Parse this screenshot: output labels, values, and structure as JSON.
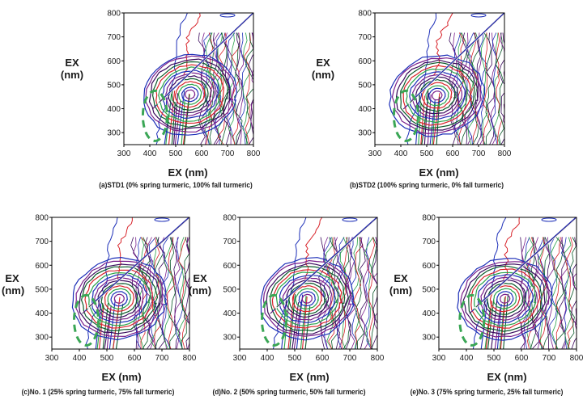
{
  "colors": {
    "contours": [
      "#3a0a5c",
      "#7a1f8c",
      "#1d2fb8",
      "#2aa34a",
      "#d8232a",
      "#0b5a2a"
    ],
    "marker": "#3aa655",
    "frame": "#000000"
  },
  "chart_data": [
    {
      "type": "contour",
      "id": "a",
      "caption": "(a)STD1 (0% spring turmeric, 100% fall turmeric)",
      "xlabel": "EX (nm)",
      "ylabel": [
        "EX",
        "(nm)"
      ],
      "xlim": [
        300,
        800
      ],
      "ylim": [
        250,
        800
      ],
      "xticks": [
        "300",
        "400",
        "500",
        "600",
        "700",
        "800"
      ],
      "yticks": [
        "300",
        "400",
        "500",
        "600",
        "700",
        "800"
      ],
      "peak": {
        "x": 555,
        "y": 460
      },
      "marker": {
        "x": 420,
        "y": 370
      }
    },
    {
      "type": "contour",
      "id": "b",
      "caption": "(b)STD2 (100% spring turmeric, 0% fall turmeric)",
      "xlabel": "EX (nm)",
      "ylabel": [
        "EX",
        "(nm)"
      ],
      "xlim": [
        300,
        800
      ],
      "ylim": [
        250,
        800
      ],
      "xticks": [
        "300",
        "400",
        "500",
        "600",
        "700",
        "800"
      ],
      "yticks": [
        "300",
        "400",
        "500",
        "600",
        "700",
        "800"
      ],
      "peak": {
        "x": 540,
        "y": 455
      },
      "marker": {
        "x": 420,
        "y": 370
      }
    },
    {
      "type": "contour",
      "id": "c",
      "caption": "(c)No. 1 (25% spring turmeric, 75% fall turmeric)",
      "xlabel": "EX (nm)",
      "ylabel": [
        "EX",
        "(nm)"
      ],
      "xlim": [
        300,
        800
      ],
      "ylim": [
        250,
        800
      ],
      "xticks": [
        "300",
        "400",
        "500",
        "600",
        "700",
        "800"
      ],
      "yticks": [
        "300",
        "400",
        "500",
        "600",
        "700",
        "800"
      ],
      "peak": {
        "x": 545,
        "y": 460
      },
      "marker": {
        "x": 425,
        "y": 370
      }
    },
    {
      "type": "contour",
      "id": "d",
      "caption": "(d)No. 2 (50% spring turmeric, 50% fall turmeric)",
      "xlabel": "EX (nm)",
      "ylabel": [
        "EX",
        "(nm)"
      ],
      "xlim": [
        300,
        800
      ],
      "ylim": [
        250,
        800
      ],
      "xticks": [
        "300",
        "400",
        "500",
        "600",
        "700",
        "800"
      ],
      "yticks": [
        "300",
        "400",
        "500",
        "600",
        "700",
        "800"
      ],
      "peak": {
        "x": 545,
        "y": 460
      },
      "marker": {
        "x": 425,
        "y": 370
      }
    },
    {
      "type": "contour",
      "id": "e",
      "caption": "(e)No. 3 (75% spring turmeric, 25% fall turmeric)",
      "xlabel": "EX (nm)",
      "ylabel": [
        "EX",
        "(nm)"
      ],
      "xlim": [
        300,
        800
      ],
      "ylim": [
        250,
        800
      ],
      "xticks": [
        "300",
        "400",
        "500",
        "600",
        "700",
        "800"
      ],
      "yticks": [
        "300",
        "400",
        "500",
        "600",
        "700",
        "800"
      ],
      "peak": {
        "x": 540,
        "y": 460
      },
      "marker": {
        "x": 420,
        "y": 370
      }
    }
  ]
}
